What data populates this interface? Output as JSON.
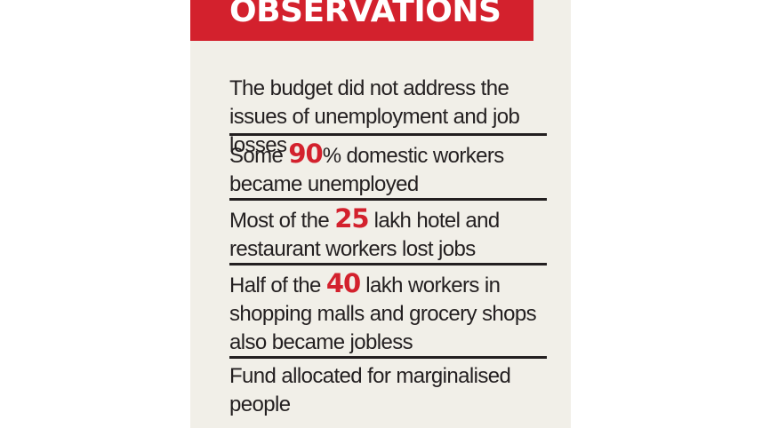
{
  "header": {
    "title": "OBSERVATIONS"
  },
  "items": [
    {
      "text": "The budget did not address the issues of unemployment and job losses"
    },
    {
      "pre": "Some ",
      "highlight": "90",
      "post": "% domestic workers became unemployed"
    },
    {
      "pre": "Most of the ",
      "highlight": "25",
      "post": " lakh hotel and restaurant workers lost jobs"
    },
    {
      "pre": "Half of the ",
      "highlight": "40",
      "post": " lakh workers in shopping malls and grocery shops also became jobless"
    },
    {
      "text": "Fund allocated for marginalised people"
    }
  ],
  "colors": {
    "accent": "#d3212d",
    "background": "#f1efe8",
    "text": "#231f20"
  }
}
